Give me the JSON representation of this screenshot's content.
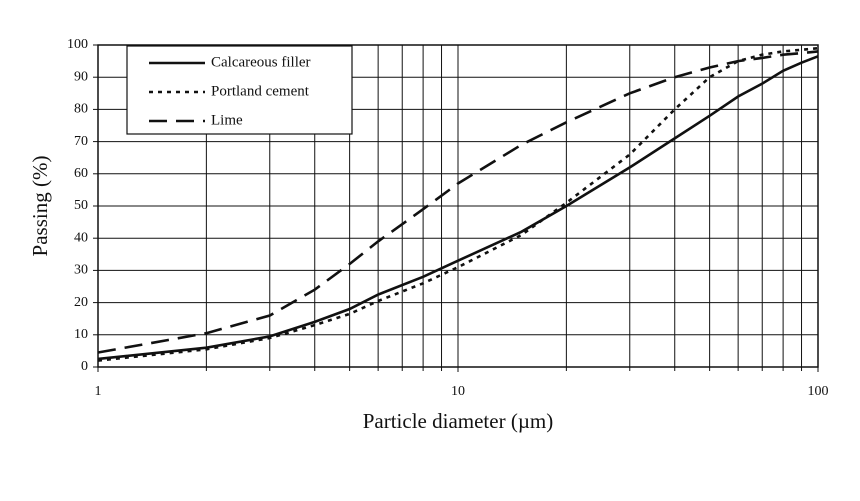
{
  "chart_data": {
    "type": "line",
    "xlabel": "Particle diameter (µm)",
    "ylabel": "Passing (%)",
    "x": [
      1,
      2,
      3,
      4,
      5,
      6,
      8,
      10,
      15,
      20,
      30,
      40,
      50,
      60,
      70,
      80,
      90,
      100
    ],
    "series": [
      {
        "name": "Calcareous filler",
        "color": "#111111",
        "dash": "solid",
        "values": [
          2.5,
          6,
          9.5,
          14,
          18,
          22.5,
          28,
          33,
          42,
          50,
          62,
          71,
          78,
          84,
          88,
          92,
          94.5,
          96.5
        ]
      },
      {
        "name": "Portland cement",
        "color": "#111111",
        "dash": "dotted",
        "values": [
          2,
          5.5,
          9,
          13,
          16.5,
          20.5,
          26,
          31,
          41,
          51,
          66,
          80,
          90,
          95,
          97,
          98,
          98.5,
          99
        ]
      },
      {
        "name": "Lime",
        "color": "#111111",
        "dash": "dashed",
        "values": [
          4.5,
          10.5,
          16,
          24,
          32,
          39,
          49,
          57,
          69,
          76,
          85,
          90,
          93,
          95,
          96,
          97,
          97.5,
          98
        ]
      }
    ],
    "xlim": [
      1,
      100
    ],
    "xticks": [
      1,
      10,
      100
    ],
    "xminorticks": [
      2,
      3,
      4,
      5,
      6,
      7,
      8,
      9,
      20,
      30,
      40,
      50,
      60,
      70,
      80,
      90
    ],
    "xscale": "log",
    "ylim": [
      0,
      100
    ],
    "yticks": [
      0,
      10,
      20,
      30,
      40,
      50,
      60,
      70,
      80,
      90,
      100
    ],
    "grid": true,
    "legend": "upper left"
  }
}
